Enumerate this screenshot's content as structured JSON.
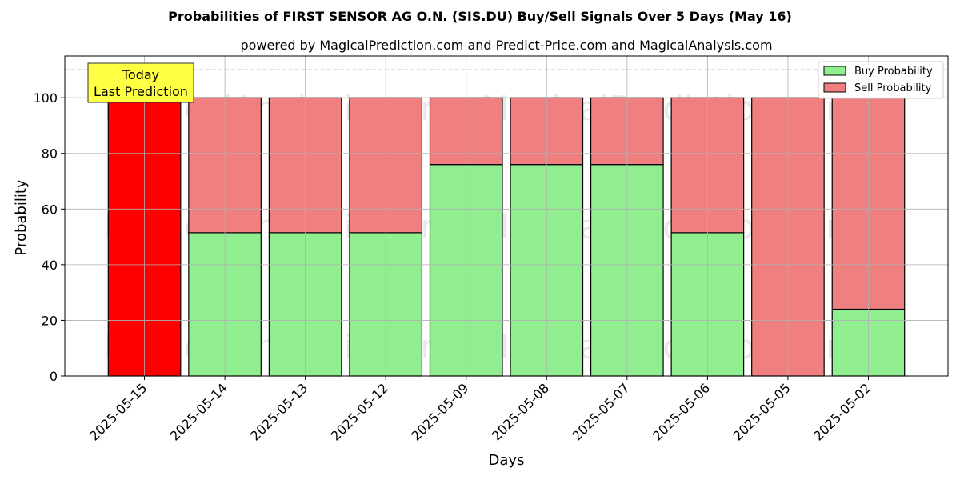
{
  "chart_data": {
    "type": "bar",
    "stacked": true,
    "title": "Probabilities of FIRST SENSOR AG O.N. (SIS.DU) Buy/Sell Signals Over 5 Days (May 16)",
    "subtitle": "powered by MagicalPrediction.com and Predict-Price.com and MagicalAnalysis.com",
    "xlabel": "Days",
    "ylabel": "Probability",
    "ylim": [
      0,
      115
    ],
    "yticks": [
      0,
      20,
      40,
      60,
      80,
      100
    ],
    "grid": true,
    "legend_position": "top-right",
    "categories": [
      "2025-05-15",
      "2025-05-14",
      "2025-05-13",
      "2025-05-12",
      "2025-05-09",
      "2025-05-08",
      "2025-05-07",
      "2025-05-06",
      "2025-05-05",
      "2025-05-02"
    ],
    "series": [
      {
        "name": "Buy Probability",
        "color": "#90ee90",
        "values": [
          0,
          51.5,
          51.5,
          51.5,
          76,
          76,
          76,
          51.5,
          0,
          24
        ]
      },
      {
        "name": "Sell Probability",
        "color": "#f08080",
        "values": [
          100,
          48.5,
          48.5,
          48.5,
          24,
          24,
          24,
          48.5,
          100,
          76
        ]
      }
    ],
    "highlight": {
      "index": 0,
      "sell_color": "#ff0000"
    },
    "reference_line": {
      "y": 110,
      "style": "dashed",
      "color": "#808080"
    },
    "annotation": {
      "lines": [
        "Today",
        "Last Prediction"
      ],
      "background": "#ffff44"
    },
    "watermarks": [
      "MagicalAnalysis.com",
      "MagicalPrediction.com",
      "MagicalAnalysis.com",
      "MagicalPrediction.com",
      "MagicalAnalysis.com",
      "MagicalPrediction.com"
    ]
  }
}
